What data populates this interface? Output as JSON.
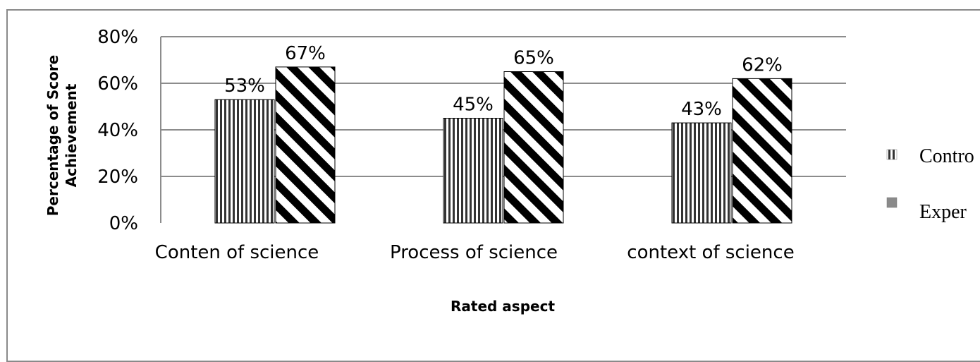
{
  "chart_data": {
    "type": "bar",
    "categories": [
      "Conten of science",
      "Process of science",
      "context of science"
    ],
    "series": [
      {
        "name": "Contro",
        "values": [
          53,
          45,
          43
        ],
        "labels": [
          "53%",
          "45%",
          "43%"
        ],
        "pattern": "vertical"
      },
      {
        "name": "Exper",
        "values": [
          67,
          65,
          62
        ],
        "labels": [
          "67%",
          "65%",
          "62%"
        ],
        "pattern": "diagonal"
      }
    ],
    "ylim": [
      0,
      80
    ],
    "yticks": [
      "0%",
      "20%",
      "40%",
      "60%",
      "80%"
    ],
    "ylabel": [
      "Percentage of Score",
      "Achievement"
    ],
    "xlabel": "Rated aspect",
    "grid": true,
    "legend_position": "right",
    "colors": {
      "grid": "#8c8c8c",
      "bar_stroke": "#000000",
      "frame": "#8a8a8a"
    }
  }
}
